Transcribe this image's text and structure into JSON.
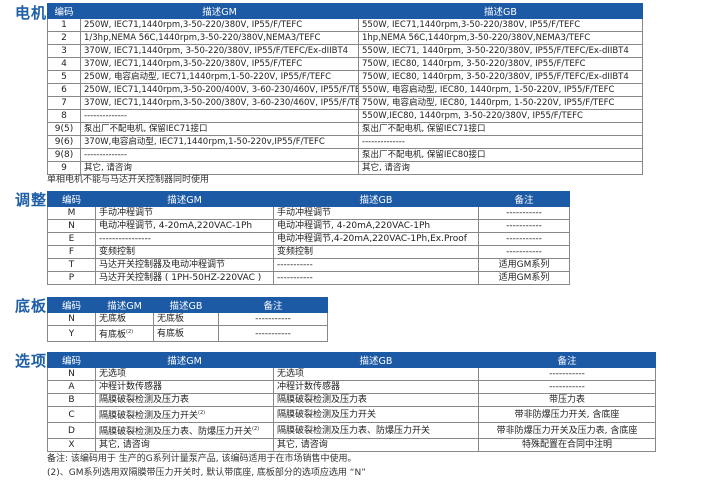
{
  "motor": {
    "label": "电机",
    "headers": [
      "编码",
      "描述GM",
      "描述GB"
    ],
    "rows": [
      [
        "1",
        "250W, IEC71,1440rpm,3-50-220/380V, IP55/F/TEFC",
        "550W, IEC71,1440rpm,3-50-220/380V, IP55/F/TEFC"
      ],
      [
        "2",
        "1/3hp,NEMA 56C,1440rpm,3-50-220/380V,NEMA3/TEFC",
        "1hp,NEMA 56C,1440rpm,3-50-220/380V,NEMA3/TEFC"
      ],
      [
        "3",
        "370W, IEC71,1440rpm, 3-50-220/380V, IP55/F/TEFC/Ex-dIIBT4",
        "550W, IEC71, 1440rpm, 3-50-220/380V, IP55/F/TEFC/Ex-dIIBT4"
      ],
      [
        "4",
        "370W, IEC71,1440rpm,3-50-220/380V, IP55/F/TEFC",
        "750W, IEC80, 1440rpm, 3-50-220/380V, IP55/F/TEFC"
      ],
      [
        "5",
        "250W, 电容启动型, IEC71,1440rpm,1-50-220V, IP55/F/TEFC",
        "750W, IEC80, 1440rpm, 3-50-220/380V, IP55/F/TEFC/Ex-dIIBT4"
      ],
      [
        "6",
        "250W, IEC71,1440rpm,3-50-200/400V, 3-60-230/460V, IP55/F/TEFC",
        "550W, 电容启动型, IEC80, 1440rpm, 1-50-220V, IP55/F/TEFC"
      ],
      [
        "7",
        "370W, IEC71,1440rpm,3-50-200/380V, 3-60-230/460V, IP55/F/TEFC",
        "750W, 电容启动型, IEC80, 1440rpm, 1-50-220V, IP55/F/TEFC"
      ],
      [
        "8",
        "--------------",
        "550W,IEC80, 1440rpm, 3-50-220/380V, IP55/F/TEFC"
      ],
      [
        "9(5)",
        "泵出厂不配电机, 保留IEC71接口",
        "泵出厂不配电机, 保留IEC71接口"
      ],
      [
        "9(6)",
        "370W,电容启动型, IEC71,1440rpm,1-50-220v,IP55/F/TEFC",
        "--------------"
      ],
      [
        "9(8)",
        "--------------",
        "泵出厂不配电机, 保留IEC80接口"
      ],
      [
        "9",
        "其它, 请咨询",
        "其它, 请咨询"
      ]
    ],
    "caption": "单相电机不能与马达开关控制器同时使用"
  },
  "adjust": {
    "label": "调整",
    "headers": [
      "编码",
      "描述GM",
      "描述GB",
      "备注"
    ],
    "rows": [
      [
        "M",
        "手动冲程调节",
        "手动冲程调节",
        "-----------"
      ],
      [
        "N",
        "电动冲程调节, 4-20mA,220VAC-1Ph",
        "电动冲程调节, 4-20mA,220VAC-1Ph",
        "-----------"
      ],
      [
        "E",
        "----------------",
        "电动冲程调节,4-20mA,220VAC-1Ph,Ex.Proof",
        "-----------"
      ],
      [
        "F",
        "变频控制",
        "变频控制",
        "-----------"
      ],
      [
        "T",
        "马达开关控制器及电动冲程调节",
        "-----------",
        "适用GM系列"
      ],
      [
        "P",
        "马达开关控制器 ( 1PH-50HZ-220VAC )",
        "-----------",
        "适用GM系列"
      ]
    ]
  },
  "base": {
    "label": "底板",
    "headers": [
      "编码",
      "描述GM",
      "描述GB",
      "备注"
    ],
    "rows": [
      [
        "N",
        "无底板",
        "无底板",
        "-----------"
      ],
      [
        "Y",
        "有底板",
        "有底板",
        "-----------"
      ]
    ],
    "sup": "(2)"
  },
  "options": {
    "label": "选项",
    "headers": [
      "编码",
      "描述GM",
      "描述GB",
      "备注"
    ],
    "rows": [
      [
        "N",
        "无选项",
        "无选项",
        "-----------"
      ],
      [
        "A",
        "冲程计数传感器",
        "冲程计数传感器",
        "-----------"
      ],
      [
        "B",
        "隔膜破裂检测及压力表",
        "隔膜破裂检测及压力表",
        "带压力表"
      ],
      [
        "C",
        "隔膜破裂检测及压力开关",
        "隔膜破裂检测及压力开关",
        "带非防爆压力开关, 含底座"
      ],
      [
        "D",
        "隔膜破裂检测及压力表、防爆压力开关",
        "隔膜破裂检测及压力表、防爆压力开关",
        "带非防爆压力开关及压力表, 含底座"
      ],
      [
        "X",
        "其它, 请咨询",
        "其它, 请咨询",
        "特殊配置在合同中注明"
      ]
    ],
    "sup": "(2)"
  },
  "notes": [
    "备注:    该编码用于                                        生产的G系列计量泵产品, 该编码适用于在市场销售中使用。",
    "(2)、GM系列选用双隔膜带压力开关时, 默认带底座, 底板部分的选项应选用 “N”"
  ],
  "colors": {
    "header": "#1c5aa6",
    "section_label": "#1f5fa8"
  }
}
